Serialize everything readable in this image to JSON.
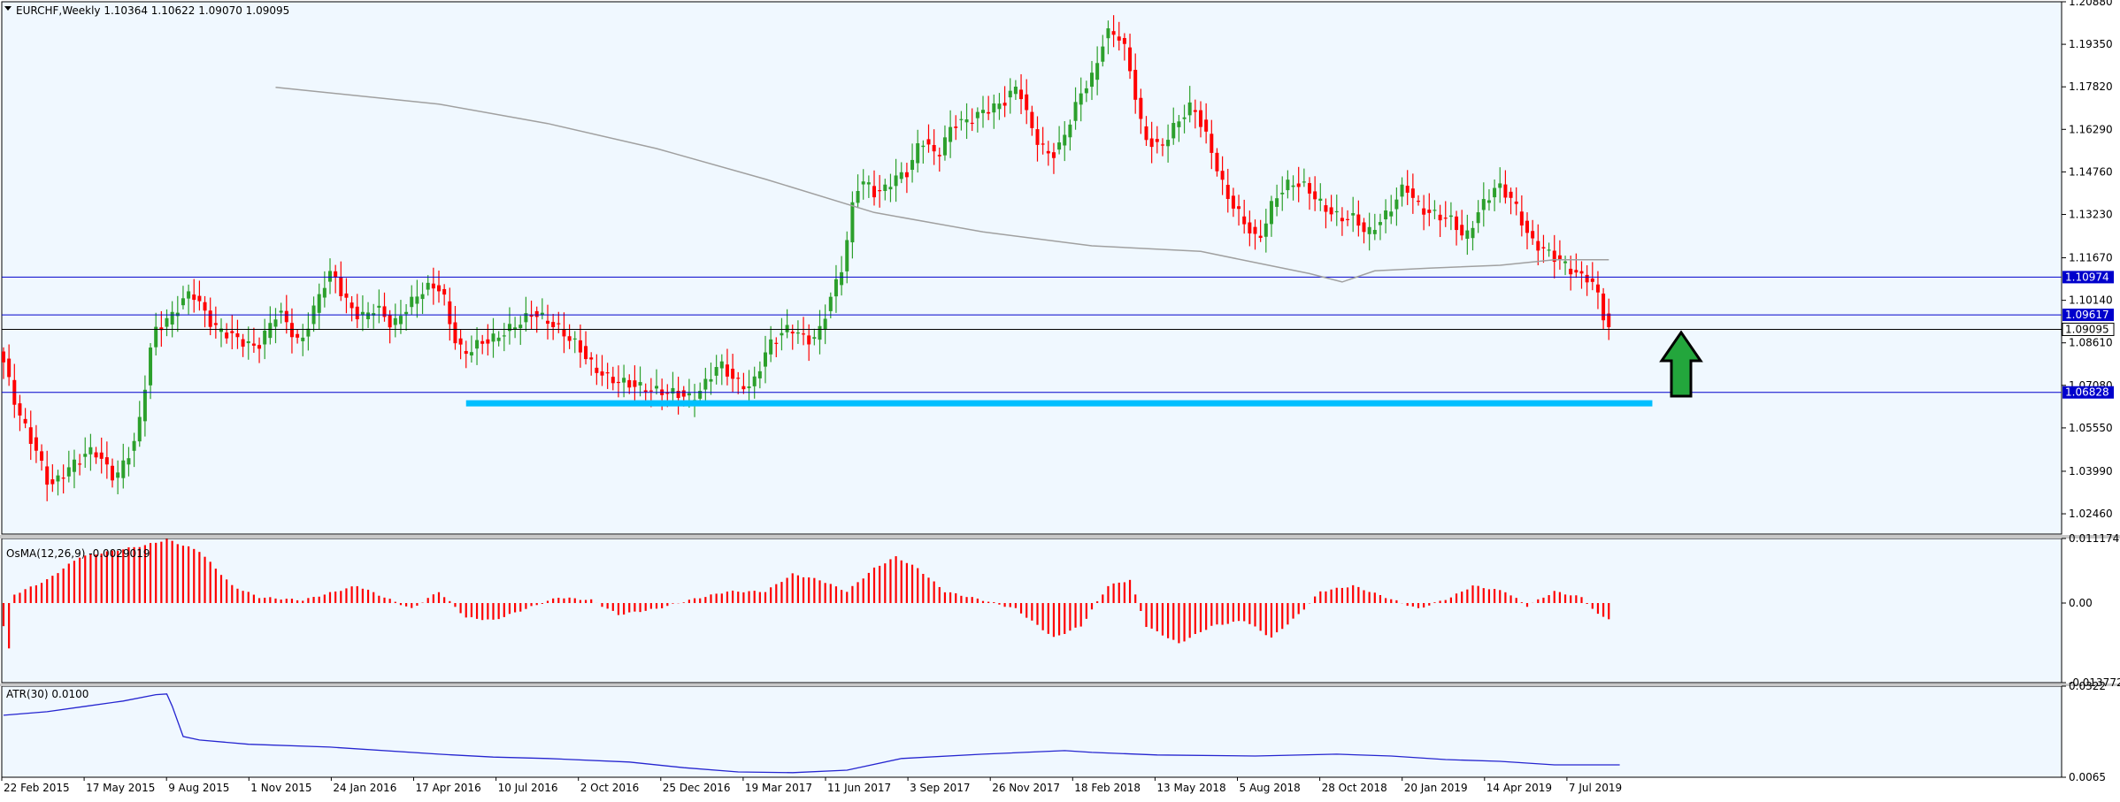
{
  "colors": {
    "background": "#f0f8ff",
    "frame": "#000000",
    "bull_body": "#2ca02c",
    "bear_body": "#ff0000",
    "level_line": "#0000cc",
    "highlight_bar": "#00bfff",
    "ma_line": "#a0a0a0",
    "arrow_fill": "#23a63c",
    "atr_line": "#2525d0",
    "osma_bar": "#ff0000"
  },
  "main_chart": {
    "symbol_header": "EURCHF,Weekly  1.10364 1.10622 1.09070 1.09095",
    "price_ticks": [
      "1.20880",
      "1.19350",
      "1.17820",
      "1.16290",
      "1.14760",
      "1.13230",
      "1.11670",
      "1.10140",
      "1.08610",
      "1.07080",
      "1.05550",
      "1.03990",
      "1.02460"
    ],
    "arrow_icon": "green-up-arrow"
  },
  "chart_data": [
    {
      "type": "candlestick",
      "ylim": [
        1.0173,
        1.2088
      ],
      "x_ticks": [
        "22 Feb 2015",
        "17 May 2015",
        "9 Aug 2015",
        "1 Nov 2015",
        "24 Jan 2016",
        "17 Apr 2016",
        "10 Jul 2016",
        "2 Oct 2016",
        "25 Dec 2016",
        "19 Mar 2017",
        "11 Jun 2017",
        "3 Sep 2017",
        "26 Nov 2017",
        "18 Feb 2018",
        "13 May 2018",
        "5 Aug 2018",
        "28 Oct 2018",
        "20 Jan 2019",
        "14 Apr 2019",
        "7 Jul 2019"
      ],
      "price_labels": [
        {
          "value": 1.10974,
          "text": "1.10974",
          "style": "blue"
        },
        {
          "value": 1.09617,
          "text": "1.09617",
          "style": "blue"
        },
        {
          "value": 1.09095,
          "text": "1.09095",
          "style": "black"
        },
        {
          "value": 1.06828,
          "text": "1.06828",
          "style": "blue"
        }
      ],
      "horizontal_levels": [
        1.10974,
        1.09617,
        1.09095,
        1.06828
      ],
      "support_zone": {
        "y": 1.0645,
        "from_week": 85,
        "to_week": 303
      },
      "anchors": [
        [
          0,
          1.0825
        ],
        [
          3,
          1.062
        ],
        [
          7,
          1.045
        ],
        [
          9,
          1.034
        ],
        [
          13,
          1.042
        ],
        [
          17,
          1.048
        ],
        [
          21,
          1.037
        ],
        [
          25,
          1.052
        ],
        [
          28,
          1.09
        ],
        [
          31,
          1.095
        ],
        [
          35,
          1.105
        ],
        [
          39,
          1.092
        ],
        [
          43,
          1.088
        ],
        [
          47,
          1.084
        ],
        [
          51,
          1.098
        ],
        [
          55,
          1.085
        ],
        [
          59,
          1.106
        ],
        [
          61,
          1.112
        ],
        [
          63,
          1.102
        ],
        [
          66,
          1.095
        ],
        [
          69,
          1.099
        ],
        [
          72,
          1.092
        ],
        [
          75,
          1.1
        ],
        [
          78,
          1.106
        ],
        [
          81,
          1.106
        ],
        [
          83,
          1.089
        ],
        [
          85,
          1.082
        ],
        [
          88,
          1.086
        ],
        [
          91,
          1.088
        ],
        [
          95,
          1.093
        ],
        [
          98,
          1.097
        ],
        [
          102,
          1.092
        ],
        [
          106,
          1.085
        ],
        [
          109,
          1.077
        ],
        [
          112,
          1.073
        ],
        [
          116,
          1.071
        ],
        [
          120,
          1.069
        ],
        [
          124,
          1.068
        ],
        [
          127,
          1.066
        ],
        [
          129,
          1.07
        ],
        [
          132,
          1.079
        ],
        [
          135,
          1.072
        ],
        [
          138,
          1.07
        ],
        [
          141,
          1.085
        ],
        [
          145,
          1.092
        ],
        [
          148,
          1.087
        ],
        [
          150,
          1.088
        ],
        [
          153,
          1.105
        ],
        [
          155,
          1.116
        ],
        [
          157,
          1.142
        ],
        [
          159,
          1.144
        ],
        [
          161,
          1.139
        ],
        [
          164,
          1.145
        ],
        [
          167,
          1.148
        ],
        [
          169,
          1.16
        ],
        [
          172,
          1.153
        ],
        [
          175,
          1.165
        ],
        [
          178,
          1.166
        ],
        [
          181,
          1.17
        ],
        [
          184,
          1.172
        ],
        [
          187,
          1.179
        ],
        [
          189,
          1.165
        ],
        [
          191,
          1.157
        ],
        [
          193,
          1.153
        ],
        [
          195,
          1.158
        ],
        [
          197,
          1.169
        ],
        [
          199,
          1.178
        ],
        [
          201,
          1.183
        ],
        [
          203,
          1.198
        ],
        [
          206,
          1.196
        ],
        [
          208,
          1.18
        ],
        [
          210,
          1.16
        ],
        [
          213,
          1.156
        ],
        [
          216,
          1.165
        ],
        [
          219,
          1.172
        ],
        [
          222,
          1.158
        ],
        [
          225,
          1.14
        ],
        [
          228,
          1.131
        ],
        [
          231,
          1.122
        ],
        [
          234,
          1.138
        ],
        [
          237,
          1.144
        ],
        [
          240,
          1.142
        ],
        [
          243,
          1.135
        ],
        [
          246,
          1.131
        ],
        [
          249,
          1.131
        ],
        [
          251,
          1.125
        ],
        [
          255,
          1.133
        ],
        [
          258,
          1.143
        ],
        [
          261,
          1.134
        ],
        [
          264,
          1.132
        ],
        [
          267,
          1.13
        ],
        [
          269,
          1.123
        ],
        [
          272,
          1.135
        ],
        [
          275,
          1.143
        ],
        [
          278,
          1.137
        ],
        [
          281,
          1.123
        ],
        [
          284,
          1.119
        ],
        [
          287,
          1.115
        ],
        [
          290,
          1.11
        ],
        [
          292,
          1.1095
        ],
        [
          294,
          1.101
        ],
        [
          295,
          1.091
        ]
      ],
      "ma_path": [
        [
          50,
          1.178
        ],
        [
          80,
          1.172
        ],
        [
          100,
          1.165
        ],
        [
          120,
          1.156
        ],
        [
          140,
          1.145
        ],
        [
          160,
          1.133
        ],
        [
          180,
          1.126
        ],
        [
          200,
          1.121
        ],
        [
          220,
          1.119
        ],
        [
          230,
          1.115
        ],
        [
          240,
          1.111
        ],
        [
          246,
          1.108
        ],
        [
          252,
          1.112
        ],
        [
          262,
          1.113
        ],
        [
          275,
          1.114
        ],
        [
          285,
          1.116
        ],
        [
          295,
          1.116
        ]
      ]
    },
    {
      "type": "bar",
      "title": "OsMA(12,26,9) -0.0029019",
      "ylim": [
        -0.013772,
        0.011174
      ],
      "y_ticks": [
        "0.011174",
        "0.00",
        "-0.013772"
      ],
      "anchors": [
        [
          0,
          -0.004
        ],
        [
          1,
          -0.008
        ],
        [
          2,
          0.0015
        ],
        [
          8,
          0.004
        ],
        [
          14,
          0.008
        ],
        [
          20,
          0.009
        ],
        [
          26,
          0.01
        ],
        [
          30,
          0.011
        ],
        [
          36,
          0.009
        ],
        [
          42,
          0.003
        ],
        [
          47,
          0.001
        ],
        [
          55,
          0.0005
        ],
        [
          61,
          0.002
        ],
        [
          65,
          0.003
        ],
        [
          70,
          0.001
        ],
        [
          75,
          -0.001
        ],
        [
          80,
          0.002
        ],
        [
          85,
          -0.0025
        ],
        [
          90,
          -0.003
        ],
        [
          96,
          -0.001
        ],
        [
          102,
          0.001
        ],
        [
          108,
          0.0005
        ],
        [
          113,
          -0.002
        ],
        [
          120,
          -0.001
        ],
        [
          126,
          0.0005
        ],
        [
          133,
          0.002
        ],
        [
          140,
          0.002
        ],
        [
          145,
          0.005
        ],
        [
          150,
          0.004
        ],
        [
          155,
          0.002
        ],
        [
          160,
          0.006
        ],
        [
          164,
          0.008
        ],
        [
          168,
          0.006
        ],
        [
          173,
          0.002
        ],
        [
          180,
          0.0005
        ],
        [
          186,
          -0.001
        ],
        [
          193,
          -0.006
        ],
        [
          198,
          -0.004
        ],
        [
          203,
          0.003
        ],
        [
          207,
          0.004
        ],
        [
          210,
          -0.004
        ],
        [
          216,
          -0.007
        ],
        [
          222,
          -0.004
        ],
        [
          228,
          -0.003
        ],
        [
          233,
          -0.006
        ],
        [
          238,
          -0.002
        ],
        [
          242,
          0.002
        ],
        [
          248,
          0.003
        ],
        [
          254,
          0.001
        ],
        [
          260,
          -0.001
        ],
        [
          266,
          0.001
        ],
        [
          270,
          0.003
        ],
        [
          276,
          0.002
        ],
        [
          280,
          -0.0005
        ],
        [
          285,
          0.002
        ],
        [
          290,
          0.001
        ],
        [
          293,
          -0.002
        ],
        [
          296,
          -0.003
        ],
        [
          297,
          -0.0029
        ]
      ]
    },
    {
      "type": "line",
      "title": "ATR(30) 0.0100",
      "ylim": [
        0.0065,
        0.0322
      ],
      "y_ticks": [
        "0.0322",
        "0.0065"
      ],
      "points": [
        [
          0,
          0.024
        ],
        [
          8,
          0.025
        ],
        [
          15,
          0.0265
        ],
        [
          22,
          0.028
        ],
        [
          28,
          0.0298
        ],
        [
          30,
          0.03
        ],
        [
          31,
          0.0265
        ],
        [
          33,
          0.018
        ],
        [
          36,
          0.017
        ],
        [
          45,
          0.0158
        ],
        [
          60,
          0.015
        ],
        [
          80,
          0.013
        ],
        [
          90,
          0.0122
        ],
        [
          100,
          0.0118
        ],
        [
          115,
          0.0108
        ],
        [
          125,
          0.0092
        ],
        [
          135,
          0.008
        ],
        [
          145,
          0.0078
        ],
        [
          155,
          0.0085
        ],
        [
          165,
          0.0118
        ],
        [
          180,
          0.013
        ],
        [
          195,
          0.014
        ],
        [
          200,
          0.0135
        ],
        [
          212,
          0.0128
        ],
        [
          230,
          0.0125
        ],
        [
          245,
          0.013
        ],
        [
          255,
          0.0125
        ],
        [
          265,
          0.0115
        ],
        [
          275,
          0.011
        ],
        [
          285,
          0.01
        ],
        [
          297,
          0.01
        ]
      ]
    }
  ]
}
